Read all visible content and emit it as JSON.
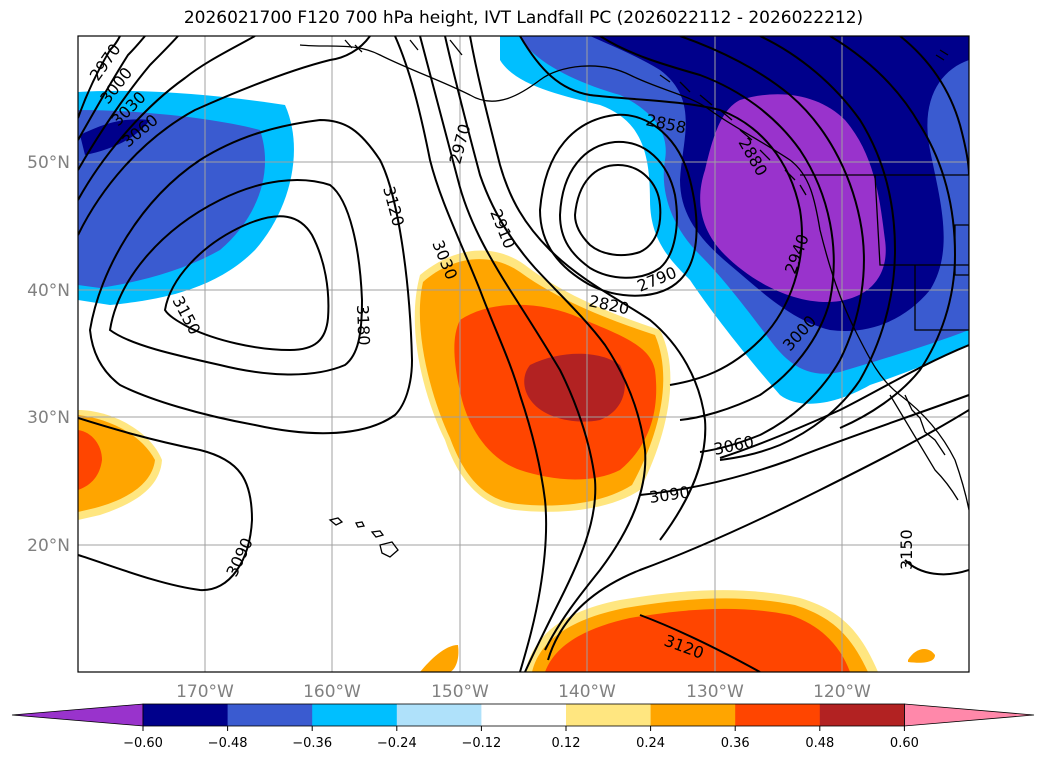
{
  "title": "2026021700 F120 700 hPa height, IVT Landfall PC (2026022112 - 2026022212)",
  "map": {
    "longitude_labels": [
      "170°W",
      "160°W",
      "150°W",
      "140°W",
      "130°W",
      "120°W"
    ],
    "latitude_labels": [
      "20°N",
      "30°N",
      "40°N",
      "50°N"
    ],
    "gridlines": true,
    "contour_labels": [
      "2970",
      "3000",
      "3030",
      "3060",
      "3120",
      "3150",
      "3180",
      "2970",
      "2910",
      "3030",
      "2858",
      "2880",
      "2790",
      "2820",
      "2940",
      "3000",
      "3060",
      "3090",
      "3090",
      "3150",
      "3120"
    ]
  },
  "colorbar": {
    "ticks": [
      "-0.60",
      "-0.48",
      "-0.36",
      "-0.24",
      "-0.12",
      "0.12",
      "0.24",
      "0.36",
      "0.48",
      "0.60"
    ],
    "colors": [
      "#9933cc",
      "#00008b",
      "#3a5bd0",
      "#00bfff",
      "#afe1fa",
      "#ffffff",
      "#ffe680",
      "#ffa500",
      "#ff4500",
      "#b22222",
      "#ff88aa"
    ],
    "extend": "both"
  }
}
